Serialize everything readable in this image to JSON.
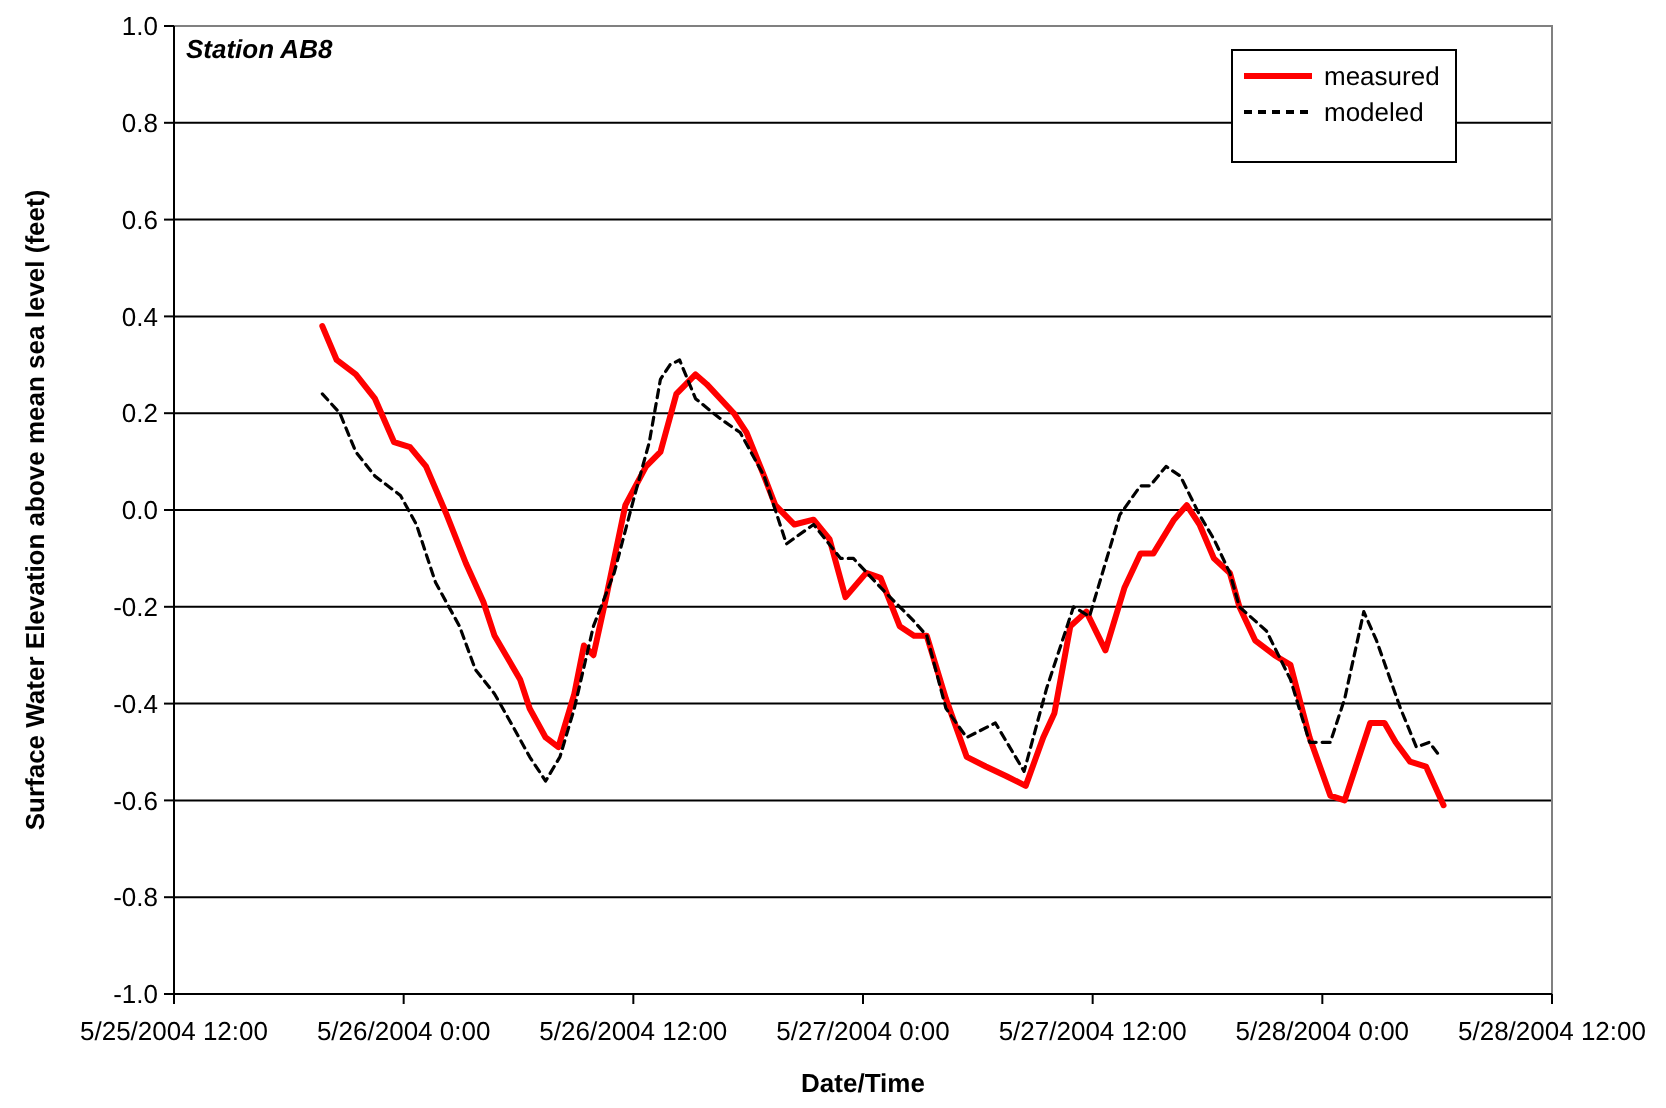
{
  "chart_data": {
    "type": "line",
    "xlabel": "Date/Time",
    "ylabel": "Surface Water Elevation above mean sea level (feet)",
    "annotations": [
      "Station AB8"
    ],
    "xlim": [
      "2004-05-25T12:00",
      "2004-05-28T12:00"
    ],
    "xticks": [
      {
        "value": "2004-05-25T12:00",
        "label": "5/25/2004 12:00"
      },
      {
        "value": "2004-05-26T00:00",
        "label": "5/26/2004 0:00"
      },
      {
        "value": "2004-05-26T12:00",
        "label": "5/26/2004 12:00"
      },
      {
        "value": "2004-05-27T00:00",
        "label": "5/27/2004 0:00"
      },
      {
        "value": "2004-05-27T12:00",
        "label": "5/27/2004 12:00"
      },
      {
        "value": "2004-05-28T00:00",
        "label": "5/28/2004 0:00"
      },
      {
        "value": "2004-05-28T12:00",
        "label": "5/28/2004 12:00"
      }
    ],
    "ylim": [
      -1,
      1
    ],
    "yticks": [
      {
        "value": -1,
        "label": "-1.0"
      },
      -0.8,
      -0.6,
      -0.4,
      -0.2,
      {
        "value": 0,
        "label": "0.0"
      },
      0.2,
      0.4,
      0.6,
      0.8,
      {
        "value": 1,
        "label": "1.0"
      }
    ],
    "grid": "y",
    "legend": "top right",
    "marker": "none",
    "series": [
      {
        "name": "measured",
        "color": "#ff0000",
        "line_style": "solid",
        "x": [
          "2004-05-25T19:45",
          "2004-05-25T20:30",
          "2004-05-25T21:30",
          "2004-05-25T22:30",
          "2004-05-25T23:30",
          "2004-05-26T00:20",
          "2004-05-26T01:10",
          "2004-05-26T02:15",
          "2004-05-26T03:15",
          "2004-05-26T04:10",
          "2004-05-26T04:45",
          "2004-05-26T06:05",
          "2004-05-26T06:35",
          "2004-05-26T07:25",
          "2004-05-26T08:05",
          "2004-05-26T08:55",
          "2004-05-26T09:25",
          "2004-05-26T09:55",
          "2004-05-26T10:35",
          "2004-05-26T11:35",
          "2004-05-26T12:40",
          "2004-05-26T13:25",
          "2004-05-26T14:15",
          "2004-05-26T14:45",
          "2004-05-26T15:15",
          "2004-05-26T15:50",
          "2004-05-26T17:15",
          "2004-05-26T17:55",
          "2004-05-26T18:50",
          "2004-05-26T19:25",
          "2004-05-26T20:25",
          "2004-05-26T21:25",
          "2004-05-26T22:15",
          "2004-05-26T23:05",
          "2004-05-27T00:10",
          "2004-05-27T00:55",
          "2004-05-27T01:55",
          "2004-05-27T02:40",
          "2004-05-27T03:20",
          "2004-05-27T04:20",
          "2004-05-27T05:25",
          "2004-05-27T06:25",
          "2004-05-27T07:30",
          "2004-05-27T08:30",
          "2004-05-27T09:25",
          "2004-05-27T10:00",
          "2004-05-27T10:50",
          "2004-05-27T11:40",
          "2004-05-27T12:40",
          "2004-05-27T13:40",
          "2004-05-27T14:30",
          "2004-05-27T15:10",
          "2004-05-27T16:15",
          "2004-05-27T16:55",
          "2004-05-27T17:35",
          "2004-05-27T18:20",
          "2004-05-27T19:10",
          "2004-05-27T19:40",
          "2004-05-27T20:30",
          "2004-05-27T21:30",
          "2004-05-27T22:20",
          "2004-05-27T23:20",
          "2004-05-28T00:25",
          "2004-05-28T01:10",
          "2004-05-28T01:45",
          "2004-05-28T02:30",
          "2004-05-28T03:15",
          "2004-05-28T03:50",
          "2004-05-28T04:35",
          "2004-05-28T05:25",
          "2004-05-28T06:20"
        ],
        "values": [
          0.38,
          0.31,
          0.28,
          0.23,
          0.14,
          0.13,
          0.09,
          -0.01,
          -0.11,
          -0.19,
          -0.26,
          -0.35,
          -0.41,
          -0.47,
          -0.49,
          -0.38,
          -0.28,
          -0.3,
          -0.18,
          0.01,
          0.09,
          0.12,
          0.24,
          0.26,
          0.28,
          0.26,
          0.2,
          0.16,
          0.07,
          0.01,
          -0.03,
          -0.02,
          -0.06,
          -0.18,
          -0.13,
          -0.14,
          -0.24,
          -0.26,
          -0.26,
          -0.39,
          -0.51,
          -0.53,
          -0.55,
          -0.57,
          -0.47,
          -0.42,
          -0.24,
          -0.21,
          -0.29,
          -0.16,
          -0.09,
          -0.09,
          -0.02,
          0.01,
          -0.03,
          -0.1,
          -0.13,
          -0.2,
          -0.27,
          -0.3,
          -0.32,
          -0.47,
          -0.59,
          -0.6,
          -0.53,
          -0.44,
          -0.44,
          -0.48,
          -0.52,
          -0.53,
          -0.61
        ]
      },
      {
        "name": "modeled",
        "color": "#000000",
        "line_style": "dashed",
        "x": [
          "2004-05-25T19:45",
          "2004-05-25T20:40",
          "2004-05-25T21:30",
          "2004-05-25T22:30",
          "2004-05-25T23:50",
          "2004-05-26T00:40",
          "2004-05-26T01:40",
          "2004-05-26T02:55",
          "2004-05-26T03:45",
          "2004-05-26T04:45",
          "2004-05-26T05:45",
          "2004-05-26T06:35",
          "2004-05-26T07:25",
          "2004-05-26T08:10",
          "2004-05-26T08:55",
          "2004-05-26T09:55",
          "2004-05-26T11:00",
          "2004-05-26T12:00",
          "2004-05-26T12:50",
          "2004-05-26T13:25",
          "2004-05-26T13:55",
          "2004-05-26T14:25",
          "2004-05-26T15:15",
          "2004-05-26T16:30",
          "2004-05-26T17:35",
          "2004-05-26T18:50",
          "2004-05-26T20:00",
          "2004-05-26T21:25",
          "2004-05-26T22:50",
          "2004-05-26T23:30",
          "2004-05-27T00:55",
          "2004-05-27T02:40",
          "2004-05-27T03:20",
          "2004-05-27T04:20",
          "2004-05-27T05:25",
          "2004-05-27T06:55",
          "2004-05-27T08:25",
          "2004-05-27T09:35",
          "2004-05-27T11:00",
          "2004-05-27T11:50",
          "2004-05-27T13:25",
          "2004-05-27T14:30",
          "2004-05-27T15:00",
          "2004-05-27T15:50",
          "2004-05-27T16:35",
          "2004-05-27T17:35",
          "2004-05-27T18:20",
          "2004-05-27T19:10",
          "2004-05-27T19:40",
          "2004-05-27T21:05",
          "2004-05-27T22:20",
          "2004-05-27T23:20",
          "2004-05-28T00:25",
          "2004-05-28T01:10",
          "2004-05-28T02:10",
          "2004-05-28T02:50",
          "2004-05-28T04:05",
          "2004-05-28T04:55",
          "2004-05-28T05:35",
          "2004-05-28T06:10"
        ],
        "values": [
          0.24,
          0.2,
          0.12,
          0.07,
          0.03,
          -0.03,
          -0.15,
          -0.24,
          -0.33,
          -0.38,
          -0.45,
          -0.51,
          -0.56,
          -0.51,
          -0.41,
          -0.24,
          -0.13,
          0.02,
          0.14,
          0.27,
          0.3,
          0.31,
          0.23,
          0.19,
          0.16,
          0.07,
          -0.07,
          -0.03,
          -0.1,
          -0.1,
          -0.16,
          -0.23,
          -0.26,
          -0.41,
          -0.47,
          -0.44,
          -0.54,
          -0.37,
          -0.2,
          -0.22,
          -0.01,
          0.05,
          0.05,
          0.09,
          0.07,
          -0.01,
          -0.06,
          -0.13,
          -0.2,
          -0.25,
          -0.35,
          -0.48,
          -0.48,
          -0.39,
          -0.21,
          -0.27,
          -0.41,
          -0.49,
          -0.48,
          -0.51
        ]
      }
    ]
  }
}
